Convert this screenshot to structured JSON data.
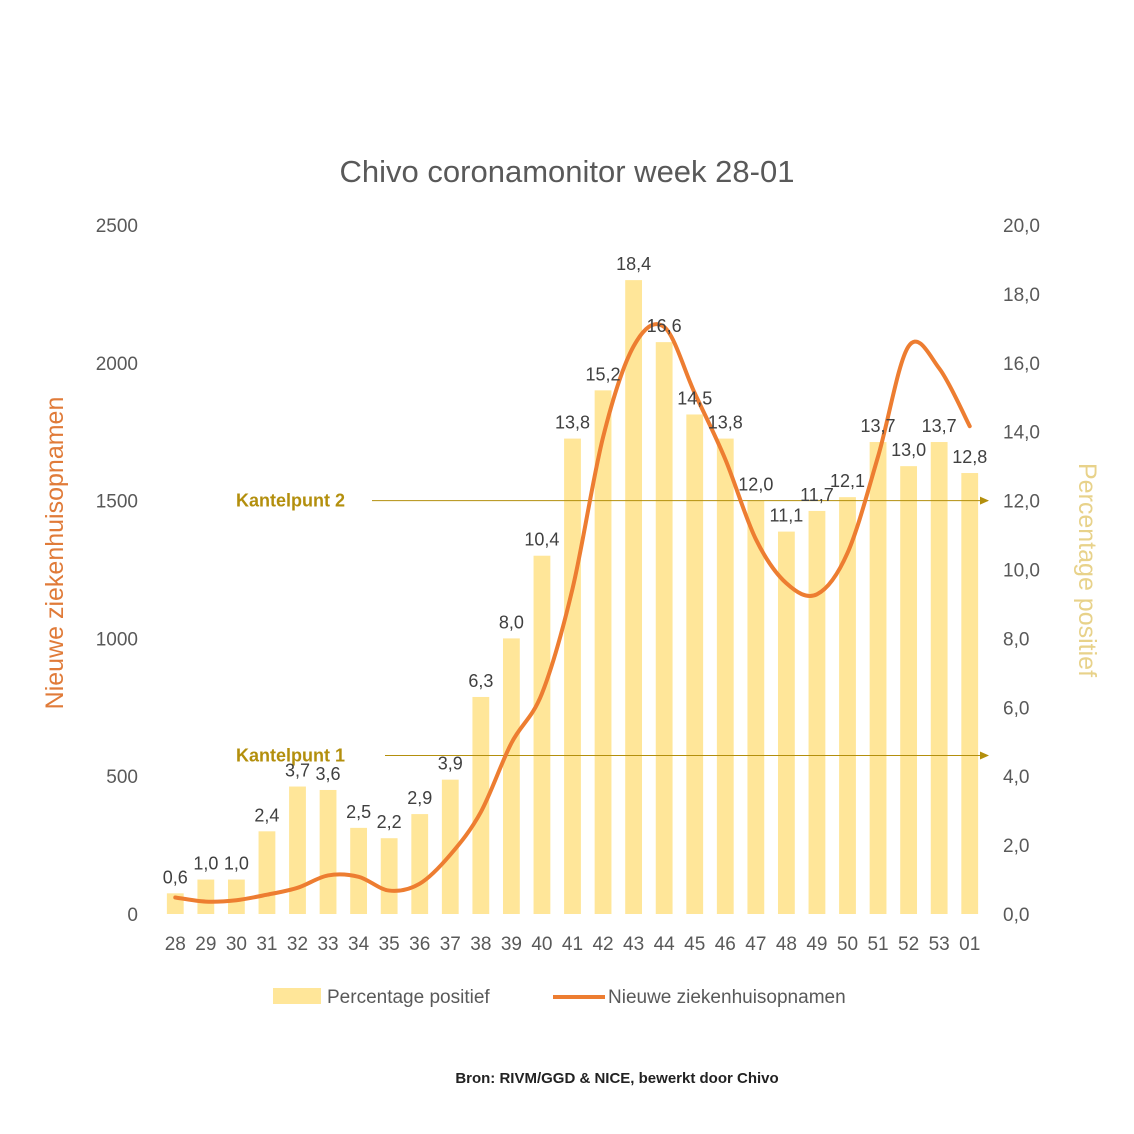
{
  "chart_data": {
    "type": "bar",
    "title": "Chivo coronamonitor week 28-01",
    "categories": [
      "28",
      "29",
      "30",
      "31",
      "32",
      "33",
      "34",
      "35",
      "36",
      "37",
      "38",
      "39",
      "40",
      "41",
      "42",
      "43",
      "44",
      "45",
      "46",
      "47",
      "48",
      "49",
      "50",
      "51",
      "52",
      "53",
      "01"
    ],
    "series": [
      {
        "name": "Percentage positief",
        "type": "bar",
        "axis": "right",
        "color": "#ffe699",
        "values": [
          0.6,
          1.0,
          1.0,
          2.4,
          3.7,
          3.6,
          2.5,
          2.2,
          2.9,
          3.9,
          6.3,
          8.0,
          10.4,
          13.8,
          15.2,
          18.4,
          16.6,
          14.5,
          13.8,
          12.0,
          11.1,
          11.7,
          12.1,
          13.7,
          13.0,
          13.7,
          12.8
        ],
        "labels": [
          "0,6",
          "1,0",
          "1,0",
          "2,4",
          "3,7",
          "3,6",
          "2,5",
          "2,2",
          "2,9",
          "3,9",
          "6,3",
          "8,0",
          "10,4",
          "13,8",
          "15,2",
          "18,4",
          "16,6",
          "14,5",
          "13,8",
          "12,0",
          "11,1",
          "11,7",
          "12,1",
          "13,7",
          "13,0",
          "13,7",
          "12,8"
        ]
      },
      {
        "name": "Nieuwe ziekenhuisopnamen",
        "type": "line",
        "axis": "left",
        "color": "#ed7d31",
        "values": [
          60,
          45,
          50,
          70,
          95,
          140,
          135,
          85,
          110,
          215,
          370,
          620,
          800,
          1180,
          1730,
          2060,
          2130,
          1890,
          1650,
          1360,
          1200,
          1160,
          1310,
          1660,
          2060,
          1980,
          1770
        ]
      }
    ],
    "y_left": {
      "label": "Nieuwe ziekenhuisopnamen",
      "min": 0,
      "max": 2500,
      "ticks": [
        0,
        500,
        1000,
        1500,
        2000,
        2500
      ],
      "tick_labels": [
        "0",
        "500",
        "1000",
        "1500",
        "2000",
        "2500"
      ],
      "color": "#e07b39"
    },
    "y_right": {
      "label": "Percentage positief",
      "min": 0,
      "max": 20,
      "ticks": [
        0,
        2,
        4,
        6,
        8,
        10,
        12,
        14,
        16,
        18,
        20
      ],
      "tick_labels": [
        "0,0",
        "2,0",
        "4,0",
        "6,0",
        "8,0",
        "10,0",
        "12,0",
        "14,0",
        "16,0",
        "18,0",
        "20,0"
      ],
      "color": "#e8d28a"
    },
    "annotations": [
      {
        "text": "Kantelpunt 2",
        "value": 12.0,
        "axis": "right",
        "color": "#b38f0d"
      },
      {
        "text": "Kantelpunt 1",
        "value": 4.6,
        "axis": "right",
        "color": "#b38f0d"
      }
    ],
    "legend": {
      "position": "bottom"
    },
    "grid": false,
    "source": "Bron: RIVM/GGD & NICE, bewerkt door Chivo"
  }
}
